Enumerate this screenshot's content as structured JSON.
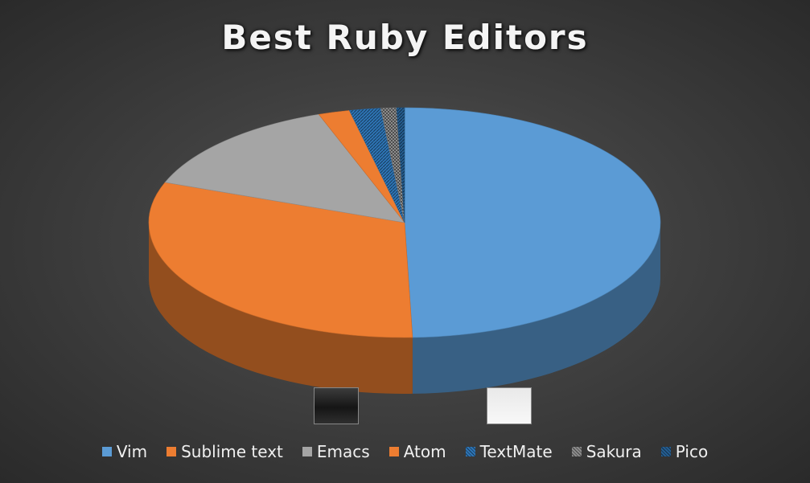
{
  "chart_data": {
    "type": "pie",
    "title": "Best Ruby Editors",
    "categories": [
      "Vim",
      "Sublime text",
      "Emacs",
      "Atom",
      "TextMate",
      "Sakura",
      "Pico"
    ],
    "values": [
      50,
      31.5,
      14,
      2,
      2,
      1,
      0.5
    ],
    "legend_position": "bottom",
    "three_d": true,
    "colors": {
      "background": "#3f3f3f",
      "Vim": "#5b9bd5",
      "Sublime text": "#ed7d31",
      "Emacs": "#a5a5a5",
      "Atom": "#ed7d31",
      "TextMate": "#2e75b6",
      "Sakura": "#8c8c8c",
      "Pico": "#255e91"
    },
    "pattern_series": [
      "TextMate",
      "Sakura",
      "Pico"
    ],
    "legend_photos": [
      "Emacs",
      "TextMate"
    ]
  }
}
